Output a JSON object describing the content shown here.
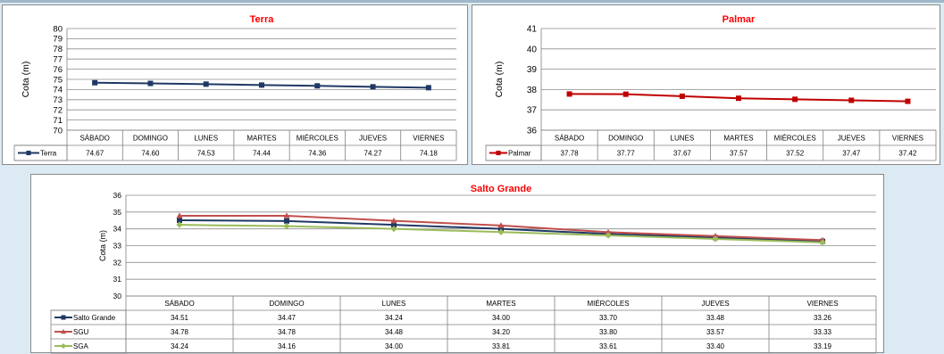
{
  "chart_data": [
    {
      "id": "terra",
      "type": "line",
      "title": "Terra",
      "ylabel": "Cota (m)",
      "xlabel": "",
      "ylim": [
        70,
        80
      ],
      "yticks": [
        "70",
        "71",
        "72",
        "73",
        "74",
        "75",
        "76",
        "77",
        "78",
        "79",
        "80"
      ],
      "grid": true,
      "legend": "data-table",
      "categories": [
        "SÁBADO",
        "DOMINGO",
        "LUNES",
        "MARTES",
        "MIÉRCOLES",
        "JUEVES",
        "VIERNES"
      ],
      "series": [
        {
          "name": "Terra",
          "color": "#1f3864",
          "marker": "square",
          "values": [
            74.67,
            74.6,
            74.53,
            74.44,
            74.36,
            74.27,
            74.18
          ],
          "labels": [
            "74.67",
            "74.60",
            "74.53",
            "74.44",
            "74.36",
            "74.27",
            "74.18"
          ]
        }
      ]
    },
    {
      "id": "palmar",
      "type": "line",
      "title": "Palmar",
      "ylabel": "Cota (m)",
      "xlabel": "",
      "ylim": [
        36,
        41
      ],
      "yticks": [
        "36",
        "37",
        "38",
        "39",
        "40",
        "41"
      ],
      "grid": true,
      "legend": "data-table",
      "categories": [
        "SÁBADO",
        "DOMINGO",
        "LUNES",
        "MARTES",
        "MIÉRCOLES",
        "JUEVES",
        "VIERNES"
      ],
      "series": [
        {
          "name": "Palmar",
          "color": "#c00000",
          "marker": "square",
          "values": [
            37.78,
            37.77,
            37.67,
            37.57,
            37.52,
            37.47,
            37.42
          ],
          "labels": [
            "37.78",
            "37.77",
            "37.67",
            "37.57",
            "37.52",
            "37.47",
            "37.42"
          ]
        }
      ]
    },
    {
      "id": "salto",
      "type": "line",
      "title": "Salto Grande",
      "ylabel": "Cota (m)",
      "xlabel": "",
      "ylim": [
        30,
        36
      ],
      "yticks": [
        "30",
        "31",
        "32",
        "33",
        "34",
        "35",
        "36"
      ],
      "grid": true,
      "legend": "data-table",
      "categories": [
        "SÁBADO",
        "DOMINGO",
        "LUNES",
        "MARTES",
        "MIÉRCOLES",
        "JUEVES",
        "VIERNES"
      ],
      "series": [
        {
          "name": "Salto Grande",
          "color": "#1f3864",
          "marker": "square",
          "values": [
            34.51,
            34.47,
            34.24,
            34.0,
            33.7,
            33.48,
            33.26
          ],
          "labels": [
            "34.51",
            "34.47",
            "34.24",
            "34.00",
            "33.70",
            "33.48",
            "33.26"
          ]
        },
        {
          "name": "SGU",
          "color": "#c0504d",
          "marker": "triangle",
          "values": [
            34.78,
            34.78,
            34.48,
            34.2,
            33.8,
            33.57,
            33.33
          ],
          "labels": [
            "34.78",
            "34.78",
            "34.48",
            "34.20",
            "33.80",
            "33.57",
            "33.33"
          ]
        },
        {
          "name": "SGA",
          "color": "#9bbb59",
          "marker": "diamond",
          "values": [
            34.24,
            34.16,
            34.0,
            33.81,
            33.61,
            33.4,
            33.19
          ],
          "labels": [
            "34.24",
            "34.16",
            "34.00",
            "33.81",
            "33.61",
            "33.40",
            "33.19"
          ]
        }
      ]
    }
  ]
}
